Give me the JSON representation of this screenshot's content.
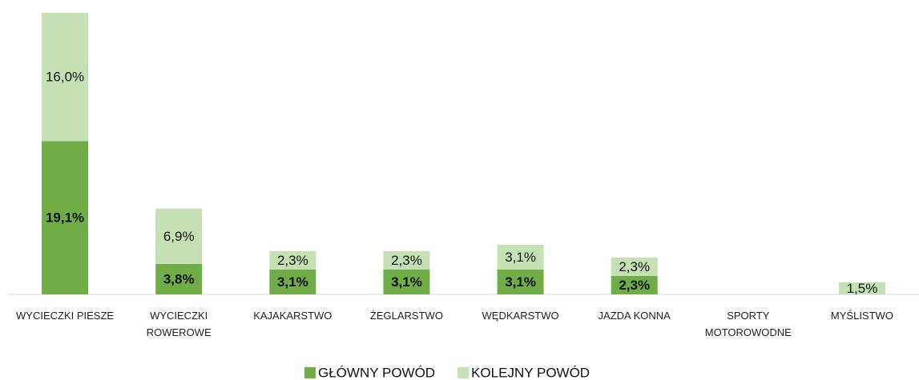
{
  "chart_data": {
    "type": "stacked_bar",
    "categories": [
      "WYCIECZKI PIESZE",
      "WYCIECZKI ROWEROWE",
      "KAJAKARSTWO",
      "ŻEGLARSTWO",
      "WĘDKARSTWO",
      "JAZDA KONNA",
      "SPORTY MOTOROWODNE",
      "MYŚLISTWO"
    ],
    "series": [
      {
        "name": "GŁÓWNY POWÓD",
        "color": "#70ad47",
        "values": [
          19.1,
          3.8,
          3.1,
          3.1,
          3.1,
          2.3,
          null,
          null
        ],
        "value_labels": [
          "19,1%",
          "3,8%",
          "3,1%",
          "3,1%",
          "3,1%",
          "2,3%",
          null,
          null
        ]
      },
      {
        "name": "KOLEJNY POWÓD",
        "color": "#c5e0b4",
        "values": [
          16.0,
          6.9,
          2.3,
          2.3,
          3.1,
          2.3,
          null,
          1.5
        ],
        "value_labels": [
          "16,0%",
          "6,9%",
          "2,3%",
          "2,3%",
          "3,1%",
          "2,3%",
          null,
          "1,5%"
        ]
      }
    ],
    "legend": "bottom"
  }
}
